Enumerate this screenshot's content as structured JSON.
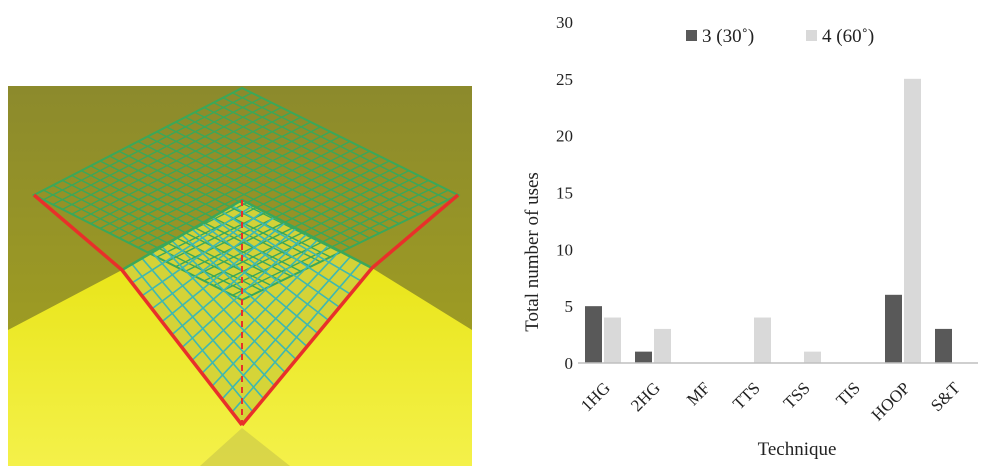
{
  "colors": {
    "series_dark": "#595959",
    "series_light": "#d9d9d9",
    "axis": "#bfbfbf",
    "grid_green": "#3aa85a",
    "grid_cyan": "#3fb8b0",
    "edge_red": "#e8302a",
    "floor_yellow": "#f2ef1c"
  },
  "scene": {
    "icon": "wireframe-cone-grid"
  },
  "chart_data": {
    "type": "bar",
    "categories": [
      "1HG",
      "2HG",
      "MF",
      "TTS",
      "TSS",
      "TIS",
      "HOOP",
      "S&T"
    ],
    "series": [
      {
        "name": "3 (30˚)",
        "values": [
          5,
          1,
          0,
          0,
          0,
          0,
          6,
          3
        ]
      },
      {
        "name": "4 (60˚)",
        "values": [
          4,
          3,
          0,
          4,
          1,
          0,
          25,
          0
        ]
      }
    ],
    "xlabel": "Technique",
    "ylabel": "Total number of uses",
    "ylim": [
      0,
      30
    ],
    "yticks": [
      "0",
      "5",
      "10",
      "15",
      "20",
      "25",
      "30"
    ],
    "grid": false,
    "legend_position": "top"
  }
}
